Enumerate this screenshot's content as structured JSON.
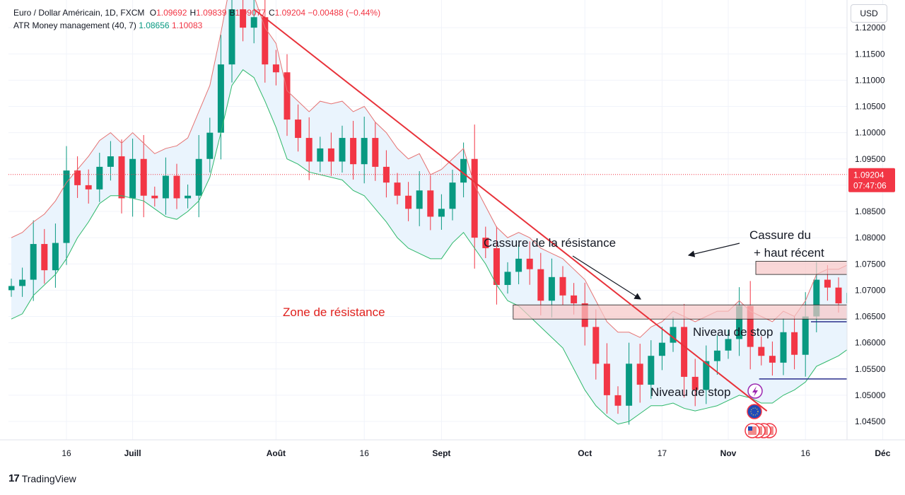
{
  "header": {
    "symbol": "Euro / Dollar Américain, 1D, FXCM",
    "ohlc": [
      {
        "k": "O",
        "v": "1.09692",
        "c": "#f23645"
      },
      {
        "k": "H",
        "v": "1.09839",
        "c": "#f23645"
      },
      {
        "k": "B",
        "v": "1.09077",
        "c": "#f23645"
      },
      {
        "k": "C",
        "v": "1.09204",
        "c": "#f23645"
      }
    ],
    "change": "−0.00488 (−0.44%)",
    "indicator_name": "ATR Money management (40, 7)",
    "indicator_v1": "1.08656",
    "indicator_v2": "1.10083"
  },
  "currency_button": "USD",
  "price_label": {
    "price": "1.09204",
    "countdown": "07:47:06",
    "color": "#f23645"
  },
  "brand": "TradingView",
  "colors": {
    "up": "#089981",
    "down": "#f23645",
    "upper_band": "#e57373",
    "lower_band": "#2eb86b",
    "band_fill": "#eaf4fd",
    "trendline": "#e8323a",
    "zone_fill": "#f7c6c6",
    "stop_line": "#2a2e8c"
  },
  "chart_data": {
    "type": "candlestick",
    "instrument": "Euro / Dollar Américain",
    "timeframe": "1D",
    "y_axis": {
      "ticks": [
        "1.12000",
        "1.11500",
        "1.11000",
        "1.10500",
        "1.10000",
        "1.09500",
        "1.09000",
        "1.08500",
        "1.08000",
        "1.07500",
        "1.07000",
        "1.06500",
        "1.06000",
        "1.05500",
        "1.05000",
        "1.04500"
      ],
      "range": [
        1.0415,
        1.1215
      ]
    },
    "x_axis": {
      "ticks": [
        "16",
        "Juill",
        "Août",
        "16",
        "Sept",
        "Oct",
        "17",
        "Nov",
        "16",
        "Déc"
      ],
      "tick_index": [
        5,
        11,
        24,
        32,
        39,
        52,
        59,
        65,
        72,
        79
      ],
      "bold": [
        false,
        true,
        true,
        false,
        true,
        true,
        false,
        true,
        false,
        true
      ]
    },
    "closes": [
      1.0708,
      1.072,
      1.0788,
      1.0738,
      1.079,
      1.0928,
      1.09,
      1.0892,
      1.0935,
      1.0955,
      1.0875,
      1.095,
      1.088,
      1.0875,
      1.0918,
      1.0875,
      1.088,
      1.095,
      1.1,
      1.113,
      1.1235,
      1.12,
      1.122,
      1.113,
      1.1115,
      1.1025,
      1.099,
      1.0945,
      1.097,
      1.0945,
      1.099,
      1.094,
      1.099,
      1.0935,
      1.0905,
      1.088,
      1.0855,
      1.089,
      1.084,
      1.0855,
      1.0905,
      1.095,
      1.08,
      1.078,
      1.071,
      1.0735,
      1.076,
      1.074,
      1.068,
      1.0725,
      1.069,
      1.0675,
      1.063,
      1.056,
      1.05,
      1.048,
      1.056,
      1.052,
      1.0575,
      1.06,
      1.063,
      1.0535,
      1.051,
      1.0565,
      1.0585,
      1.0607,
      1.067,
      1.0592,
      1.0575,
      1.0562,
      1.062,
      1.0577,
      1.065,
      1.072,
      1.0705,
      1.0675,
      1.0695,
      1.07,
      1.088,
      1.086,
      1.088,
      1.0918,
      1.0885,
      1.09,
      1.093,
      1.096,
      1.099,
      1.092
    ],
    "upper_band": [
      1.08,
      1.081,
      1.083,
      1.0845,
      1.087,
      1.0905,
      1.093,
      1.0955,
      1.0985,
      1.1,
      1.098,
      1.1,
      1.098,
      1.096,
      1.097,
      1.0975,
      1.099,
      1.104,
      1.109,
      1.119,
      1.13,
      1.129,
      1.126,
      1.12,
      1.117,
      1.108,
      1.106,
      1.104,
      1.106,
      1.1055,
      1.106,
      1.104,
      1.105,
      1.102,
      1.1,
      1.097,
      1.095,
      1.096,
      1.092,
      1.093,
      1.095,
      1.097,
      1.09,
      1.086,
      1.082,
      1.08,
      1.081,
      1.08,
      1.078,
      1.077,
      1.076,
      1.074,
      1.072,
      1.068,
      1.064,
      1.062,
      1.062,
      1.061,
      1.063,
      1.064,
      1.066,
      1.065,
      1.064,
      1.065,
      1.066,
      1.066,
      1.068,
      1.066,
      1.065,
      1.064,
      1.066,
      1.065,
      1.068,
      1.073,
      1.074,
      1.074,
      1.075,
      1.076,
      1.086,
      1.09,
      1.094,
      1.097,
      1.0985,
      1.0995,
      1.1005,
      1.101,
      1.101,
      1.101
    ],
    "lower_band": [
      1.0645,
      1.0655,
      1.069,
      1.071,
      1.073,
      1.076,
      1.08,
      1.083,
      1.0865,
      1.088,
      1.088,
      1.0875,
      1.087,
      1.0855,
      1.084,
      1.0835,
      1.085,
      1.087,
      1.0915,
      1.1,
      1.109,
      1.112,
      1.1105,
      1.106,
      1.101,
      1.095,
      1.094,
      1.0925,
      1.092,
      1.0915,
      1.091,
      1.089,
      1.088,
      1.0855,
      1.083,
      1.08,
      1.078,
      1.077,
      1.076,
      1.076,
      1.079,
      1.081,
      1.078,
      1.075,
      1.071,
      1.068,
      1.067,
      1.065,
      1.063,
      1.061,
      1.059,
      1.055,
      1.051,
      1.048,
      1.046,
      1.0445,
      1.045,
      1.0465,
      1.048,
      1.048,
      1.0485,
      1.0475,
      1.047,
      1.0475,
      1.048,
      1.049,
      1.05,
      1.0495,
      1.0485,
      1.0485,
      1.05,
      1.051,
      1.0525,
      1.0555,
      1.0565,
      1.0575,
      1.059,
      1.061,
      1.066,
      1.07,
      1.075,
      1.0785,
      1.0805,
      1.082,
      1.0835,
      1.085,
      1.0865,
      1.087
    ],
    "last_price": 1.09204,
    "trendline": {
      "from": {
        "i": 22,
        "price": 1.1235
      },
      "to": {
        "i": 68.5,
        "price": 1.047
      }
    },
    "zones": [
      {
        "from_i": 45.5,
        "to_i": 82,
        "low": 1.0645,
        "high": 1.0672
      },
      {
        "from_i": 67.5,
        "to_i": 77,
        "low": 1.073,
        "high": 1.0755
      }
    ],
    "stops": [
      {
        "from_i": 72.5,
        "to_i": 83.5,
        "price": 1.064
      },
      {
        "from_i": 67.8,
        "to_i": 77,
        "price": 1.0531
      }
    ],
    "annotations": [
      {
        "text": "Zone de résistance",
        "color": "#e0201d"
      },
      {
        "text": "Cassure de la résistance",
        "color": "#131722"
      },
      {
        "text": "Cassure du",
        "color": "#131722"
      },
      {
        "text": "+ haut récent",
        "color": "#131722"
      },
      {
        "text": "Niveau de stop",
        "color": "#131722"
      },
      {
        "text": "Niveau de stop",
        "color": "#131722"
      }
    ],
    "grid": true
  }
}
